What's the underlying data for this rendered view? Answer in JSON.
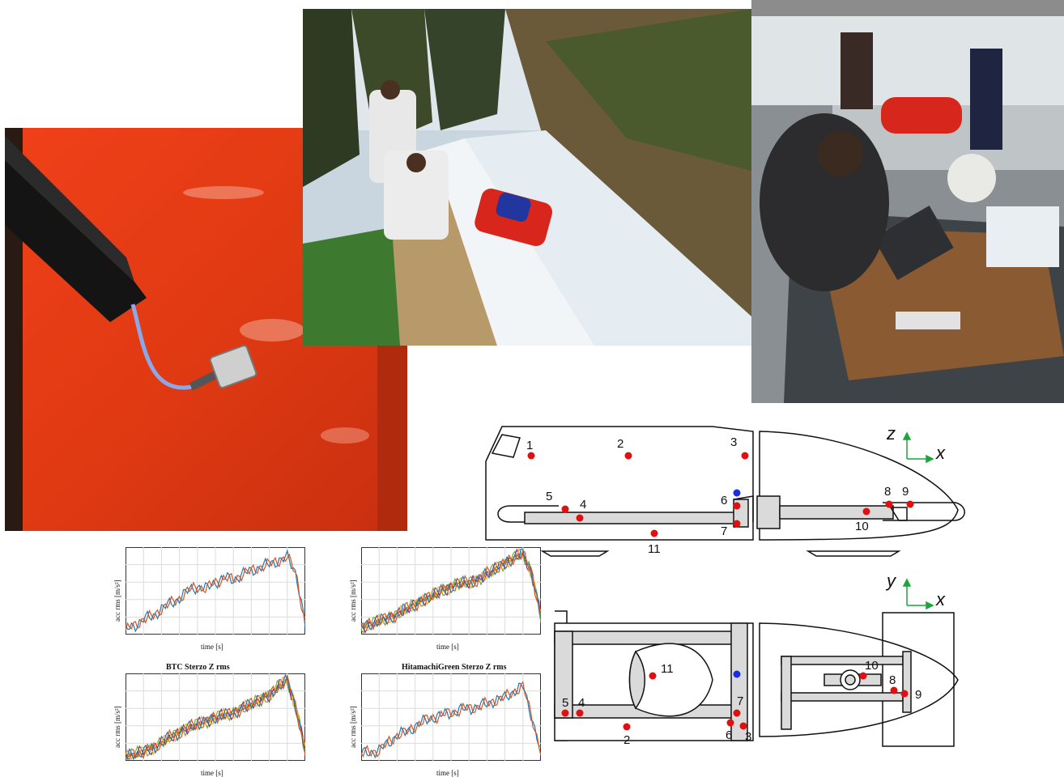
{
  "photos": [
    {
      "subject": "accelerometer sensor mounted on red bobsleigh body"
    },
    {
      "subject": "team filming bobsleigh on ice track"
    },
    {
      "subject": "engineers with laptops acquiring data"
    }
  ],
  "charts": [
    {
      "title": "",
      "xlabel": "time [s]",
      "ylabel": "acc rms [m/s²]"
    },
    {
      "title": "",
      "xlabel": "time [s]",
      "ylabel": "acc rms [m/s²]"
    },
    {
      "title": "BTC Sterzo Z rms",
      "xlabel": "time [s]",
      "ylabel": "acc rms [m/s²]"
    },
    {
      "title": "HitamachiGreen Sterzo Z rms",
      "xlabel": "time [s]",
      "ylabel": "acc rms [m/s²]"
    }
  ],
  "chart_data": [
    {
      "type": "line",
      "title": "",
      "xlabel": "time [s]",
      "ylabel": "acc rms [m/s²]",
      "x": [
        0,
        1,
        2,
        3,
        4,
        5,
        6,
        7,
        8,
        9,
        10,
        11,
        12,
        13,
        14,
        15,
        16,
        17,
        18,
        19,
        20
      ],
      "series": [
        {
          "values": [
            0.05,
            0.1,
            0.18,
            0.2,
            0.3,
            0.35,
            0.42,
            0.5,
            0.55,
            0.52,
            0.6,
            0.65,
            0.62,
            0.7,
            0.72,
            0.78,
            0.8,
            0.85,
            0.88,
            0.7,
            0.1
          ]
        }
      ]
    },
    {
      "type": "line",
      "title": "",
      "xlabel": "time [s]",
      "ylabel": "acc rms [m/s²]",
      "x": [
        0,
        1,
        2,
        3,
        4,
        5,
        6,
        7,
        8,
        9,
        10,
        11,
        12,
        13,
        14,
        15,
        16,
        17,
        18,
        19,
        20
      ],
      "series": [
        {
          "values": [
            0.08,
            0.12,
            0.15,
            0.2,
            0.22,
            0.3,
            0.34,
            0.4,
            0.45,
            0.5,
            0.55,
            0.58,
            0.6,
            0.62,
            0.7,
            0.75,
            0.82,
            0.88,
            0.92,
            0.7,
            0.2
          ]
        }
      ]
    },
    {
      "type": "line",
      "title": "BTC Sterzo Z rms",
      "xlabel": "time [s]",
      "ylabel": "acc rms [m/s²]",
      "x": [
        0,
        1,
        2,
        3,
        4,
        5,
        6,
        7,
        8,
        9,
        10,
        11,
        12,
        13,
        14,
        15,
        16,
        17,
        18,
        19,
        20
      ],
      "series": [
        {
          "values": [
            0.05,
            0.08,
            0.1,
            0.15,
            0.2,
            0.28,
            0.32,
            0.38,
            0.42,
            0.45,
            0.5,
            0.52,
            0.55,
            0.6,
            0.65,
            0.7,
            0.75,
            0.85,
            0.92,
            0.6,
            0.1
          ]
        }
      ]
    },
    {
      "type": "line",
      "title": "HitamachiGreen Sterzo Z rms",
      "xlabel": "time [s]",
      "ylabel": "acc rms [m/s²]",
      "x": [
        0,
        1,
        2,
        3,
        4,
        5,
        6,
        7,
        8,
        9,
        10,
        11,
        12,
        13,
        14,
        15,
        16,
        17,
        18,
        19,
        20
      ],
      "series": [
        {
          "values": [
            0.08,
            0.1,
            0.12,
            0.2,
            0.3,
            0.32,
            0.4,
            0.45,
            0.5,
            0.52,
            0.55,
            0.58,
            0.6,
            0.62,
            0.65,
            0.7,
            0.72,
            0.8,
            0.85,
            0.5,
            0.1
          ]
        }
      ]
    }
  ],
  "diagram": {
    "side_axes": {
      "up": "z",
      "right": "x"
    },
    "top_axes": {
      "up": "y",
      "right": "x"
    },
    "side_points": [
      "1",
      "2",
      "3",
      "4",
      "5",
      "6",
      "7",
      "8",
      "9",
      "10",
      "11"
    ],
    "top_points": [
      "11",
      "5",
      "4",
      "7",
      "6",
      "3",
      "2",
      "10",
      "8",
      "9"
    ]
  },
  "colors": {
    "red_point": "#e01010",
    "blue_point": "#1a2de0",
    "line_orange": "#d9531e",
    "line_blue": "#1f77b4",
    "line_yellow": "#e5b020",
    "line_purple": "#7e2f8e",
    "line_green": "#77ac30"
  }
}
